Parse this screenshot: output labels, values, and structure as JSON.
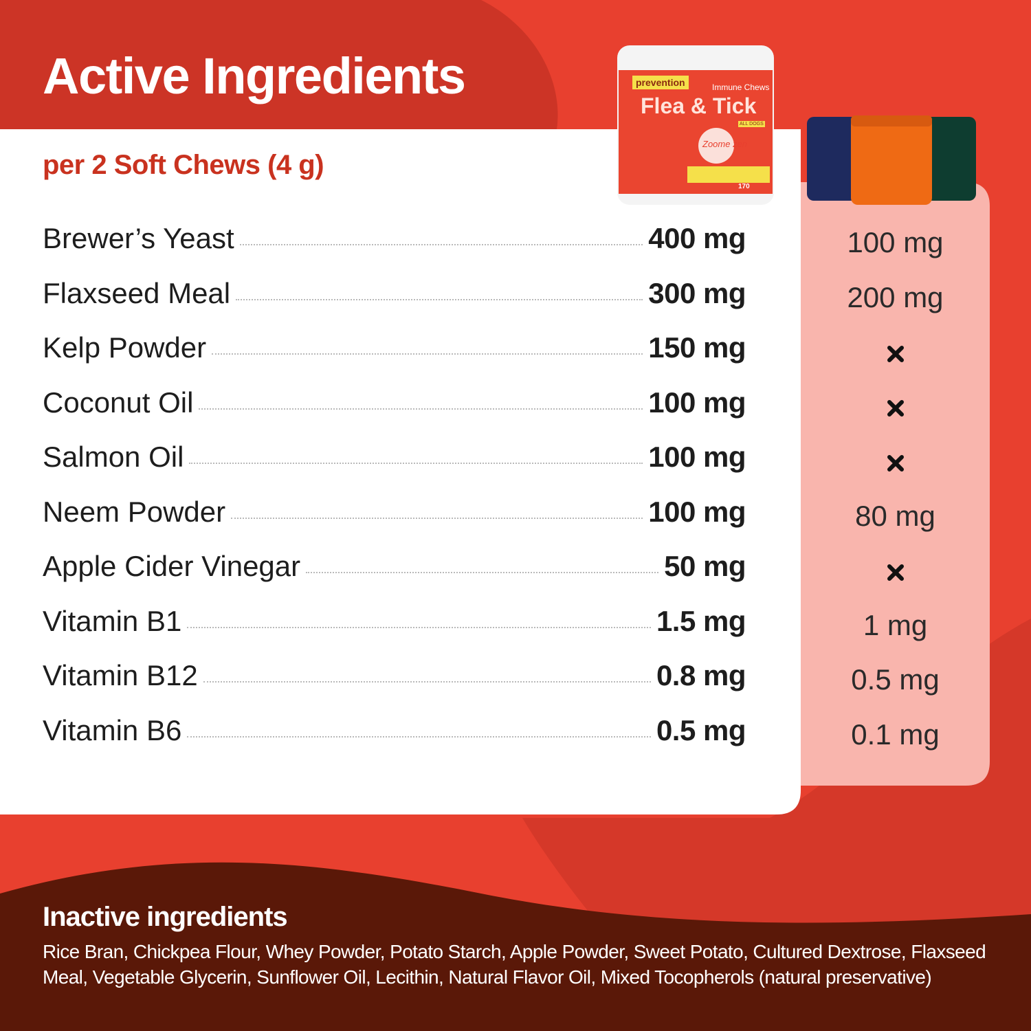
{
  "header": {
    "title": "Active Ingredients",
    "subtitle": "per 2 Soft Chews (4 g)"
  },
  "product": {
    "badge": "prevention",
    "line": "Immune Chews",
    "name": "Flea & Tick",
    "audience": "ALL DOGS",
    "brand": "Zoome zen",
    "count": "170"
  },
  "ingredients": [
    {
      "name": "Brewer’s Yeast",
      "amount": "400 mg",
      "competitor": "100 mg"
    },
    {
      "name": "Flaxseed Meal",
      "amount": "300 mg",
      "competitor": "200 mg"
    },
    {
      "name": "Kelp Powder",
      "amount": "150 mg",
      "competitor": null
    },
    {
      "name": "Coconut Oil",
      "amount": "100 mg",
      "competitor": null
    },
    {
      "name": "Salmon Oil",
      "amount": "100 mg",
      "competitor": null
    },
    {
      "name": "Neem Powder",
      "amount": "100 mg",
      "competitor": "80 mg"
    },
    {
      "name": "Apple Cider Vinegar",
      "amount": "50 mg",
      "competitor": null
    },
    {
      "name": "Vitamin B1",
      "amount": "1.5 mg",
      "competitor": "1 mg"
    },
    {
      "name": "Vitamin B12",
      "amount": "0.8 mg",
      "competitor": "0.5 mg"
    },
    {
      "name": "Vitamin B6",
      "amount": "0.5 mg",
      "competitor": "0.1 mg"
    }
  ],
  "inactive": {
    "title": "Inactive ingredients",
    "text": "Rice Bran, Chickpea Flour, Whey Powder, Potato Starch, Apple Powder, Sweet Potato, Cultured Dextrose, Flaxseed Meal, Vegetable Glycerin, Sunflower Oil, Lecithin, Natural Flavor Oil, Mixed Tocopherols (natural preservative)"
  }
}
